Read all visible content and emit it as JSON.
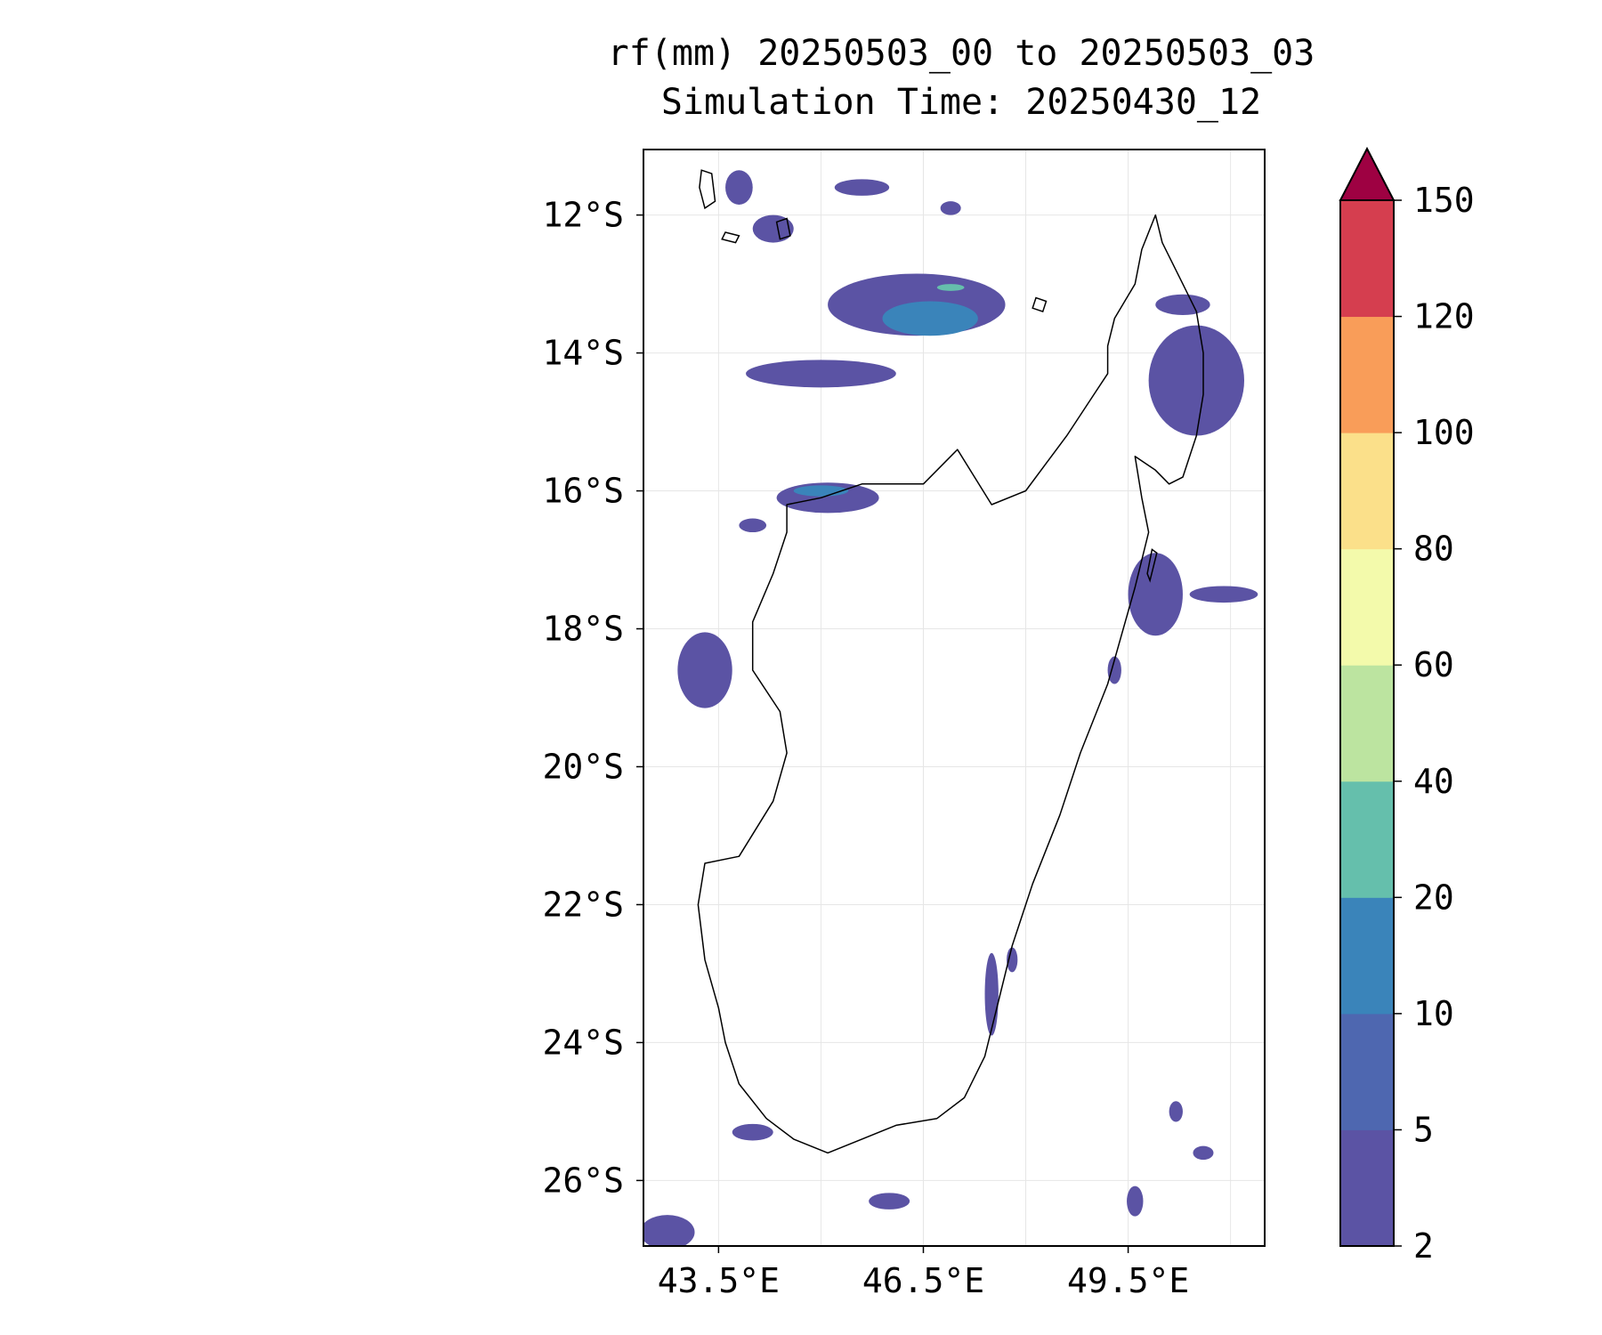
{
  "title": {
    "line1": "rf(mm) 20250503_00 to 20250503_03",
    "line2": "Simulation Time: 20250430_12"
  },
  "map": {
    "lon_range": [
      42.4,
      51.5
    ],
    "lat_range": [
      -26.95,
      -11.05
    ],
    "x_ticks": [
      {
        "value": 43.5,
        "label": "43.5°E"
      },
      {
        "value": 46.5,
        "label": "46.5°E"
      },
      {
        "value": 49.5,
        "label": "49.5°E"
      }
    ],
    "x_grid": [
      45.0,
      48.0,
      51.0
    ],
    "y_ticks": [
      {
        "value": -12,
        "label": "12°S"
      },
      {
        "value": -14,
        "label": "14°S"
      },
      {
        "value": -16,
        "label": "16°S"
      },
      {
        "value": -18,
        "label": "18°S"
      },
      {
        "value": -20,
        "label": "20°S"
      },
      {
        "value": -22,
        "label": "22°S"
      },
      {
        "value": -24,
        "label": "24°S"
      },
      {
        "value": -26,
        "label": "26°S"
      }
    ],
    "gridlines": true,
    "coastline": [
      [
        47.5,
        -16.2
      ],
      [
        48.0,
        -16.0
      ],
      [
        48.3,
        -15.6
      ],
      [
        48.6,
        -15.2
      ],
      [
        49.0,
        -14.6
      ],
      [
        49.2,
        -14.3
      ],
      [
        49.2,
        -13.9
      ],
      [
        49.3,
        -13.5
      ],
      [
        49.6,
        -13.0
      ],
      [
        49.7,
        -12.5
      ],
      [
        49.9,
        -12.0
      ],
      [
        50.0,
        -12.4
      ],
      [
        50.3,
        -13.0
      ],
      [
        50.5,
        -13.4
      ],
      [
        50.6,
        -14.0
      ],
      [
        50.6,
        -14.6
      ],
      [
        50.5,
        -15.2
      ],
      [
        50.3,
        -15.8
      ],
      [
        50.1,
        -15.9
      ],
      [
        49.9,
        -15.7
      ],
      [
        49.6,
        -15.5
      ],
      [
        49.7,
        -16.1
      ],
      [
        49.8,
        -16.6
      ],
      [
        49.6,
        -17.4
      ],
      [
        49.4,
        -18.1
      ],
      [
        49.2,
        -18.8
      ],
      [
        48.8,
        -19.8
      ],
      [
        48.5,
        -20.7
      ],
      [
        48.1,
        -21.7
      ],
      [
        47.8,
        -22.6
      ],
      [
        47.6,
        -23.4
      ],
      [
        47.4,
        -24.2
      ],
      [
        47.1,
        -24.8
      ],
      [
        46.7,
        -25.1
      ],
      [
        46.1,
        -25.2
      ],
      [
        45.6,
        -25.4
      ],
      [
        45.1,
        -25.6
      ],
      [
        44.6,
        -25.4
      ],
      [
        44.2,
        -25.1
      ],
      [
        43.8,
        -24.6
      ],
      [
        43.6,
        -24.0
      ],
      [
        43.5,
        -23.5
      ],
      [
        43.3,
        -22.8
      ],
      [
        43.2,
        -22.0
      ],
      [
        43.3,
        -21.4
      ],
      [
        43.8,
        -21.3
      ],
      [
        44.3,
        -20.5
      ],
      [
        44.5,
        -19.8
      ],
      [
        44.4,
        -19.2
      ],
      [
        44.0,
        -18.6
      ],
      [
        44.0,
        -17.9
      ],
      [
        44.3,
        -17.2
      ],
      [
        44.5,
        -16.6
      ],
      [
        44.5,
        -16.2
      ],
      [
        45.0,
        -16.1
      ],
      [
        45.6,
        -15.9
      ],
      [
        46.1,
        -15.9
      ],
      [
        46.5,
        -15.9
      ],
      [
        47.0,
        -15.4
      ],
      [
        47.5,
        -16.2
      ]
    ],
    "islands": [
      [
        [
          43.25,
          -11.35
        ],
        [
          43.4,
          -11.4
        ],
        [
          43.45,
          -11.8
        ],
        [
          43.3,
          -11.9
        ],
        [
          43.22,
          -11.6
        ]
      ],
      [
        [
          44.35,
          -12.1
        ],
        [
          44.5,
          -12.05
        ],
        [
          44.55,
          -12.3
        ],
        [
          44.4,
          -12.35
        ]
      ],
      [
        [
          43.6,
          -12.25
        ],
        [
          43.8,
          -12.3
        ],
        [
          43.75,
          -12.4
        ],
        [
          43.55,
          -12.35
        ]
      ],
      [
        [
          48.15,
          -13.2
        ],
        [
          48.3,
          -13.25
        ],
        [
          48.25,
          -13.4
        ],
        [
          48.1,
          -13.35
        ]
      ],
      [
        [
          49.85,
          -16.85
        ],
        [
          49.92,
          -16.9
        ],
        [
          49.82,
          -17.3
        ],
        [
          49.78,
          -17.2
        ]
      ]
    ],
    "rain_fields": [
      {
        "value": 3,
        "center": [
          43.8,
          -11.6
        ],
        "radii": [
          0.2,
          0.25
        ]
      },
      {
        "value": 3,
        "center": [
          44.3,
          -12.2
        ],
        "radii": [
          0.3,
          0.2
        ]
      },
      {
        "value": 3,
        "center": [
          45.6,
          -11.6
        ],
        "radii": [
          0.4,
          0.12
        ]
      },
      {
        "value": 3,
        "center": [
          46.9,
          -11.9
        ],
        "radii": [
          0.15,
          0.1
        ]
      },
      {
        "value": 3,
        "center": [
          46.4,
          -13.3
        ],
        "radii": [
          1.3,
          0.45
        ]
      },
      {
        "value": 15,
        "center": [
          46.6,
          -13.5
        ],
        "radii": [
          0.7,
          0.25
        ]
      },
      {
        "value": 25,
        "center": [
          46.9,
          -13.05
        ],
        "radii": [
          0.2,
          0.05
        ]
      },
      {
        "value": 3,
        "center": [
          45.0,
          -14.3
        ],
        "radii": [
          1.1,
          0.2
        ]
      },
      {
        "value": 3,
        "center": [
          45.1,
          -16.1
        ],
        "radii": [
          0.75,
          0.22
        ]
      },
      {
        "value": 15,
        "center": [
          45.0,
          -16.0
        ],
        "radii": [
          0.4,
          0.08
        ]
      },
      {
        "value": 3,
        "center": [
          44.0,
          -16.5
        ],
        "radii": [
          0.2,
          0.1
        ]
      },
      {
        "value": 3,
        "center": [
          50.5,
          -14.4
        ],
        "radii": [
          0.7,
          0.8
        ]
      },
      {
        "value": 3,
        "center": [
          50.3,
          -13.3
        ],
        "radii": [
          0.4,
          0.15
        ]
      },
      {
        "value": 3,
        "center": [
          49.9,
          -17.5
        ],
        "radii": [
          0.4,
          0.6
        ]
      },
      {
        "value": 3,
        "center": [
          50.9,
          -17.5
        ],
        "radii": [
          0.5,
          0.12
        ]
      },
      {
        "value": 3,
        "center": [
          43.3,
          -18.6
        ],
        "radii": [
          0.4,
          0.55
        ]
      },
      {
        "value": 3,
        "center": [
          49.3,
          -18.6
        ],
        "radii": [
          0.1,
          0.2
        ]
      },
      {
        "value": 3,
        "center": [
          47.5,
          -23.3
        ],
        "radii": [
          0.1,
          0.6
        ]
      },
      {
        "value": 3,
        "center": [
          47.8,
          -22.8
        ],
        "radii": [
          0.08,
          0.18
        ]
      },
      {
        "value": 3,
        "center": [
          44.0,
          -25.3
        ],
        "radii": [
          0.3,
          0.12
        ]
      },
      {
        "value": 3,
        "center": [
          46.0,
          -26.3
        ],
        "radii": [
          0.3,
          0.12
        ]
      },
      {
        "value": 3,
        "center": [
          42.75,
          -26.75
        ],
        "radii": [
          0.4,
          0.25
        ]
      },
      {
        "value": 3,
        "center": [
          49.6,
          -26.3
        ],
        "radii": [
          0.12,
          0.22
        ]
      },
      {
        "value": 3,
        "center": [
          50.6,
          -25.6
        ],
        "radii": [
          0.15,
          0.1
        ]
      },
      {
        "value": 3,
        "center": [
          50.2,
          -25.0
        ],
        "radii": [
          0.1,
          0.15
        ]
      }
    ]
  },
  "colorbar": {
    "levels": [
      2,
      5,
      10,
      20,
      40,
      60,
      80,
      100,
      120,
      150
    ],
    "tick_labels": [
      "2",
      "5",
      "10",
      "20",
      "40",
      "60",
      "80",
      "100",
      "120",
      "150"
    ],
    "colors": [
      "#5b53a4",
      "#4e67b0",
      "#3a84ba",
      "#65bfac",
      "#bce4a0",
      "#f3faab",
      "#fbe08a",
      "#f99d59",
      "#d53e4f"
    ],
    "extend_color": "#9e0142",
    "extend": "max"
  }
}
